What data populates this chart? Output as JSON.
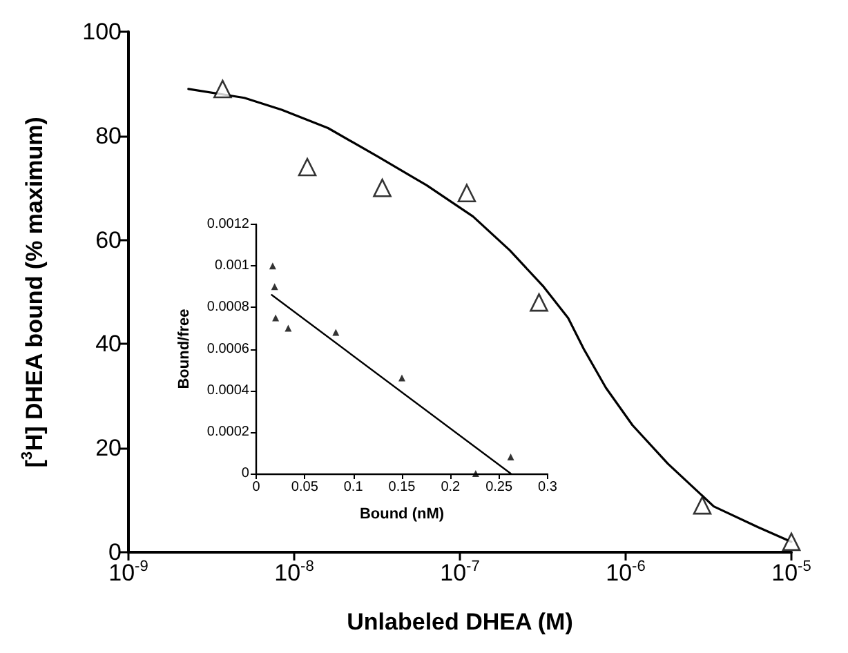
{
  "chart_data": [
    {
      "type": "scatter",
      "xlabel": "Unlabeled DHEA (M)",
      "ylabel": "[$^{3}$H] DHEA bound (% maximum)",
      "log": "x",
      "xlim": [
        1e-09,
        1e-05
      ],
      "xticks": [
        {
          "value": 1e-09,
          "label": "10$^{-9}$"
        },
        {
          "value": 1e-08,
          "label": "10$^{-8}$"
        },
        {
          "value": 1e-07,
          "label": "10$^{-7}$"
        },
        {
          "value": 1e-06,
          "label": "10$^{-6}$"
        },
        {
          "value": 1e-05,
          "label": "10$^{-5}$"
        }
      ],
      "ylim": [
        0,
        100
      ],
      "yticks": [
        0,
        20,
        40,
        60,
        80,
        100
      ],
      "series": [
        {
          "color": "#000000",
          "marker": "triangle",
          "x": [
            3.7e-09,
            1.2e-08,
            3.4e-08,
            1.1e-07,
            3e-07,
            2.9e-06,
            1e-05
          ],
          "values": [
            89,
            74,
            70,
            69,
            48,
            9,
            2
          ]
        },
        {
          "type": "line",
          "color": "#000000",
          "marker": "none",
          "line_style": "solid",
          "x": [
            2.3e-09,
            5e-09,
            8.4e-09,
            1.6e-08,
            3.2e-08,
            6.3e-08,
            1.2e-07,
            2e-07,
            3.2e-07,
            4.5e-07,
            5.6e-07,
            7.6e-07,
            1.1e-06,
            1.8e-06,
            3.4e-06,
            6.3e-06,
            1e-05
          ],
          "values": [
            89,
            87.3,
            85,
            81.5,
            76,
            70.5,
            64.5,
            58,
            51,
            45,
            39,
            31.6,
            24.4,
            17,
            8.8,
            4.8,
            2
          ]
        }
      ]
    },
    {
      "type": "scatter",
      "xlabel": "Bound (nM)",
      "ylabel": "Bound/free",
      "xlim": [
        0,
        0.3
      ],
      "xticks": [
        0,
        0.05,
        0.1,
        0.15,
        0.2,
        0.25,
        0.3
      ],
      "ylim": [
        0,
        0.0012
      ],
      "yticks": [
        0,
        0.0002,
        0.0004,
        0.0006,
        0.0008,
        0.001,
        0.0012
      ],
      "series": [
        {
          "color": "#000000",
          "marker": "triangle",
          "x": [
            0.017,
            0.019,
            0.02,
            0.033,
            0.082,
            0.15,
            0.226,
            0.262
          ],
          "values": [
            0.001,
            0.0009,
            0.00075,
            0.0007,
            0.00068,
            0.00046,
            0,
            8e-05
          ]
        },
        {
          "type": "line",
          "color": "#000000",
          "marker": "none",
          "line_style": "solid",
          "x": [
            0.016,
            0.262
          ],
          "values": [
            0.00086,
            0
          ]
        }
      ]
    }
  ]
}
